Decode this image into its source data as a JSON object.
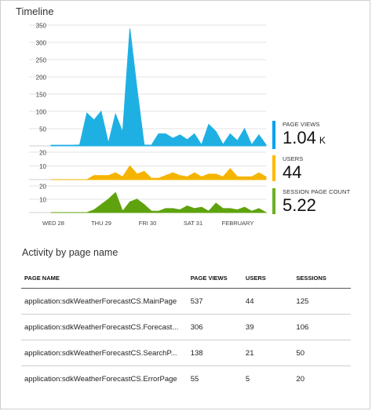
{
  "timeline": {
    "title": "Timeline",
    "colors": {
      "page_views": "#1fb0e3",
      "users": "#f5b400",
      "sessions": "#5ea30d",
      "grid": "#e3e3e3",
      "axis_text": "#444"
    }
  },
  "metrics": [
    {
      "label": "PAGE VIEWS",
      "value": "1.04",
      "unit": "K",
      "color": "#00a1f1"
    },
    {
      "label": "USERS",
      "value": "44",
      "unit": "",
      "color": "#ffb900"
    },
    {
      "label": "SESSION PAGE COUNT",
      "value": "5.22",
      "unit": "",
      "color": "#6ab023"
    }
  ],
  "chart_data": [
    {
      "type": "area",
      "series": [
        {
          "name": "PAGE VIEWS",
          "values": [
            2,
            2,
            2,
            2,
            3,
            95,
            75,
            100,
            8,
            92,
            40,
            340,
            165,
            3,
            2,
            35,
            35,
            22,
            32,
            18,
            35,
            3,
            62,
            42,
            4,
            35,
            15,
            50,
            3,
            32,
            3
          ]
        }
      ],
      "yticks": [
        50,
        100,
        150,
        200,
        250,
        300,
        350
      ],
      "ylim": [
        0,
        350
      ]
    },
    {
      "type": "area",
      "series": [
        {
          "name": "USERS",
          "values": [
            0,
            0,
            0,
            0,
            0,
            0,
            3,
            3,
            3,
            5,
            2,
            10,
            4,
            6,
            1,
            1,
            3,
            5,
            3,
            2,
            5,
            2,
            4,
            4,
            2,
            8,
            2,
            2,
            2,
            5,
            2
          ]
        }
      ],
      "yticks": [
        10,
        20
      ],
      "ylim": [
        0,
        20
      ]
    },
    {
      "type": "area",
      "series": [
        {
          "name": "SESSION PAGE COUNT",
          "values": [
            0,
            0,
            0,
            0,
            0,
            0,
            2,
            6,
            10,
            15,
            1,
            8,
            10,
            6,
            1,
            1,
            3,
            3,
            2,
            5,
            3,
            4,
            1,
            7,
            3,
            3,
            2,
            4,
            1,
            3,
            0
          ]
        }
      ],
      "yticks": [
        10,
        20
      ],
      "ylim": [
        0,
        20
      ]
    }
  ],
  "x_axis": {
    "labels": [
      "WED 28",
      "THU 29",
      "FRI 30",
      "SAT 31",
      "FEBRUARY"
    ]
  },
  "activity": {
    "title": "Activity by page name",
    "columns": [
      "PAGE NAME",
      "PAGE VIEWS",
      "USERS",
      "SESSIONS"
    ],
    "rows": [
      [
        "application:sdkWeatherForecastCS.MainPage",
        "537",
        "44",
        "125"
      ],
      [
        "application:sdkWeatherForecastCS.Forecast...",
        "306",
        "39",
        "106"
      ],
      [
        "application:sdkWeatherForecastCS.SearchP...",
        "138",
        "21",
        "50"
      ],
      [
        "application:sdkWeatherForecastCS.ErrorPage",
        "55",
        "5",
        "20"
      ]
    ]
  }
}
